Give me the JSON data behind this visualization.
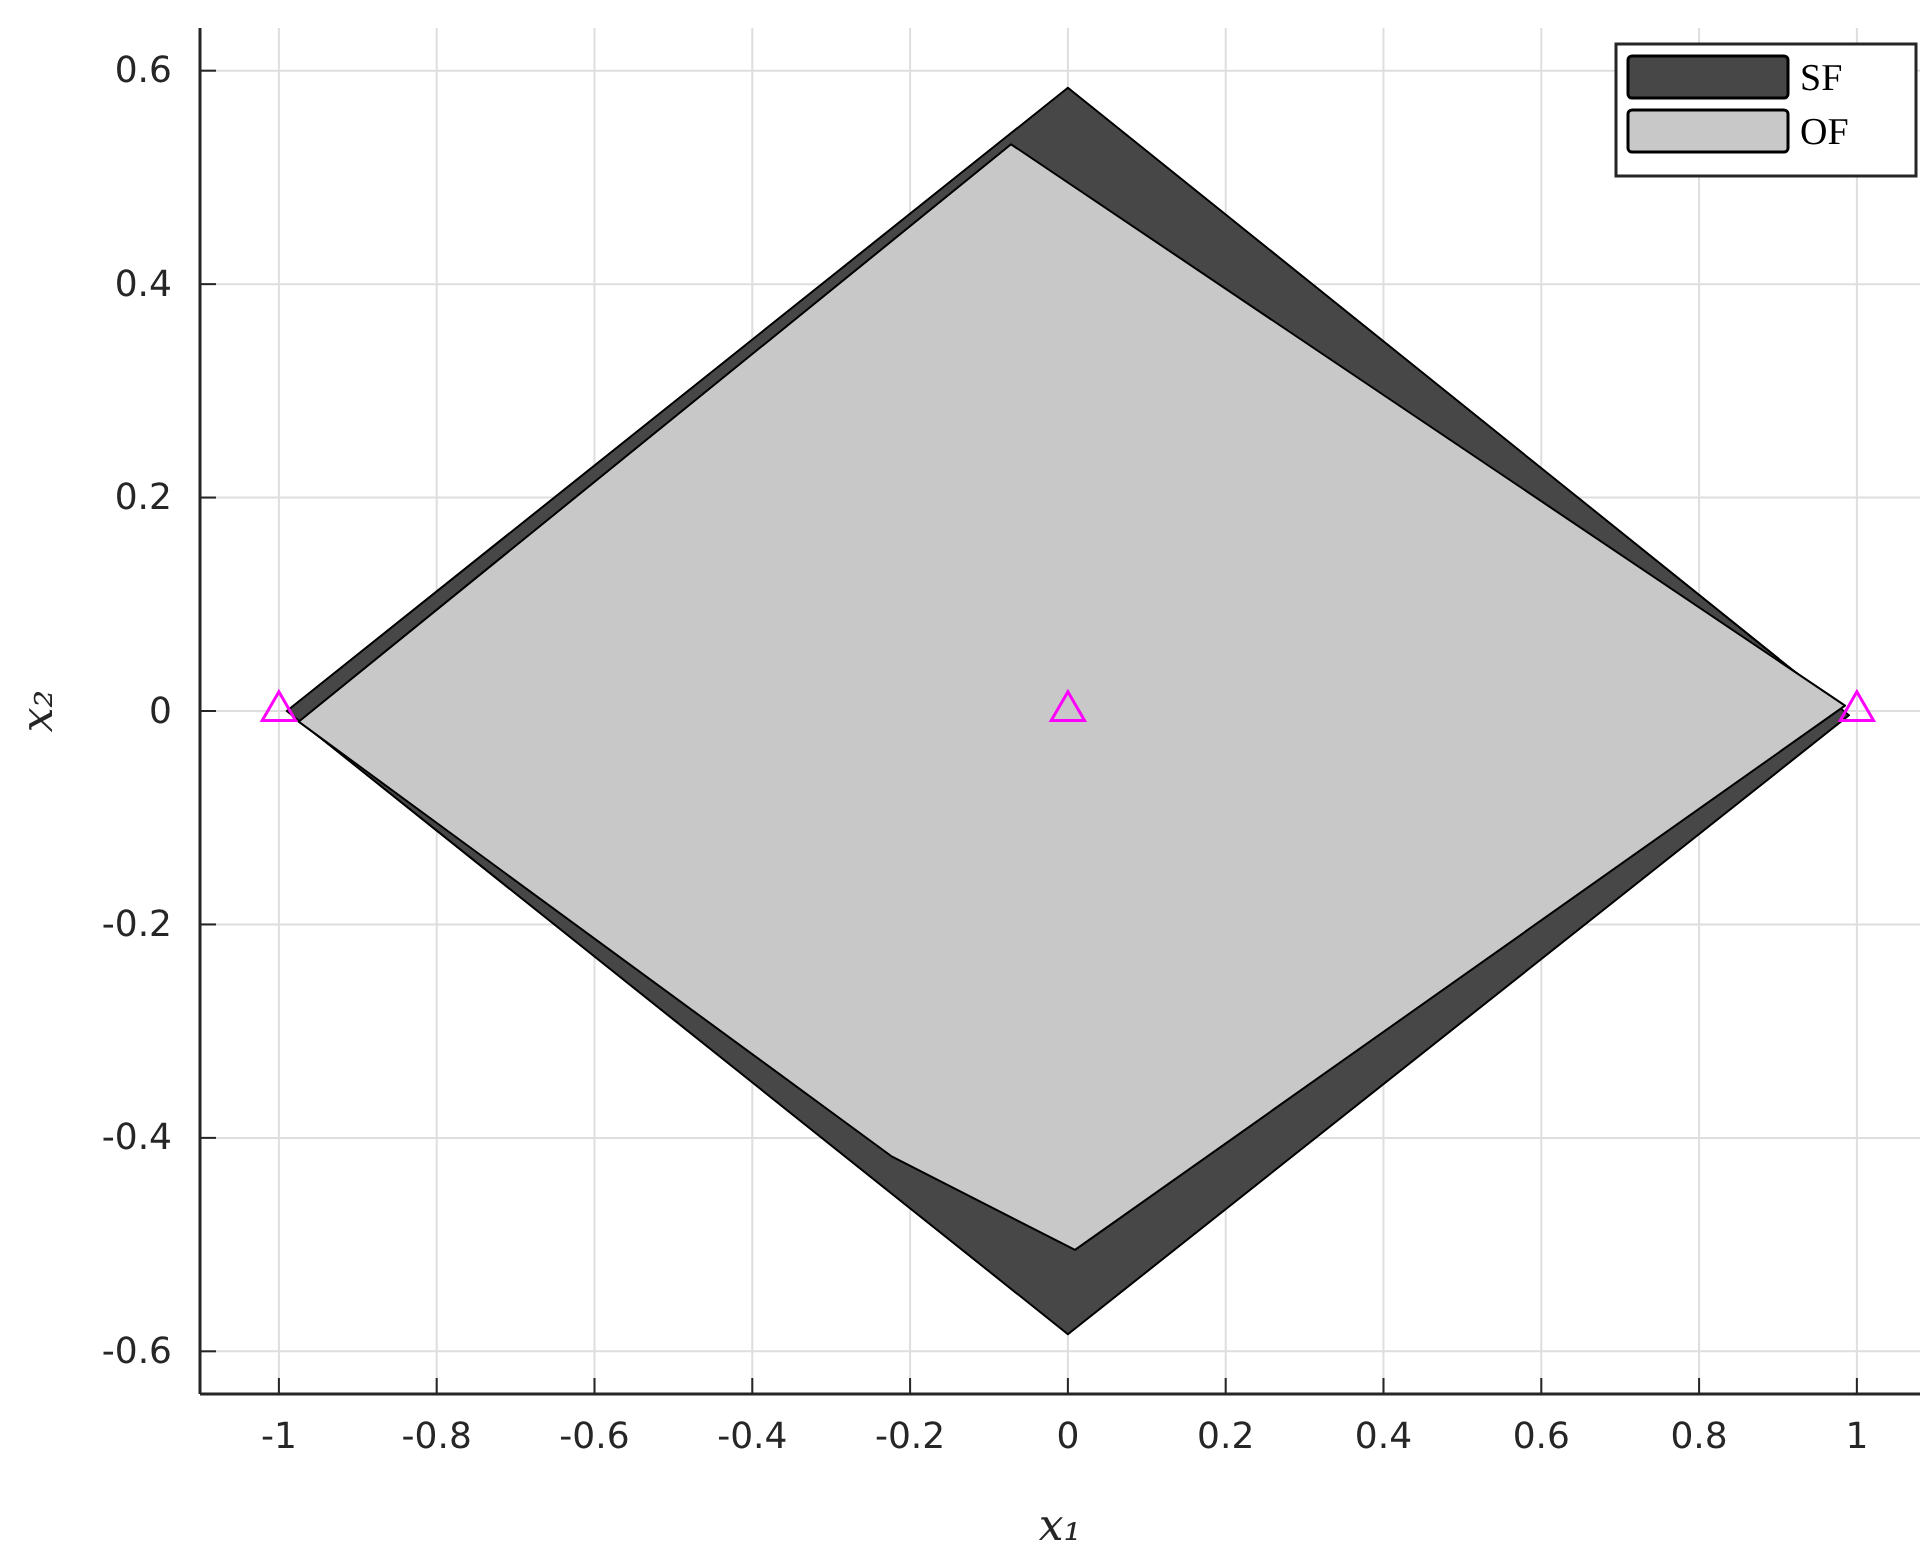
{
  "chart_data": {
    "type": "area",
    "xlabel": "x₁",
    "ylabel": "x₂",
    "xlim": [
      -1.1,
      1.08
    ],
    "ylim": [
      -0.64,
      0.64
    ],
    "xticks": [
      -1,
      -0.8,
      -0.6,
      -0.4,
      -0.2,
      0,
      0.2,
      0.4,
      0.6,
      0.8,
      1
    ],
    "yticks": [
      -0.6,
      -0.4,
      -0.2,
      0,
      0.2,
      0.4,
      0.6
    ],
    "grid": true,
    "legend": "top right",
    "series": [
      {
        "name": "SF",
        "color": "#474747",
        "x": [
          -0.99,
          0,
          0.99,
          0,
          -0.99
        ],
        "values": [
          0.0,
          0.584,
          -0.004,
          -0.584,
          0.0
        ]
      },
      {
        "name": "OF",
        "color": "#c8c8c8",
        "x": [
          -0.975,
          -0.072,
          0.985,
          0.009,
          -0.224,
          -0.975
        ],
        "values": [
          -0.01,
          0.531,
          0.005,
          -0.505,
          -0.417,
          -0.01
        ]
      },
      {
        "type": "scatter",
        "color": "#ff00ff",
        "marker": "triangle",
        "x": [
          -1,
          0,
          1
        ],
        "values": [
          0,
          0,
          0
        ]
      }
    ]
  }
}
